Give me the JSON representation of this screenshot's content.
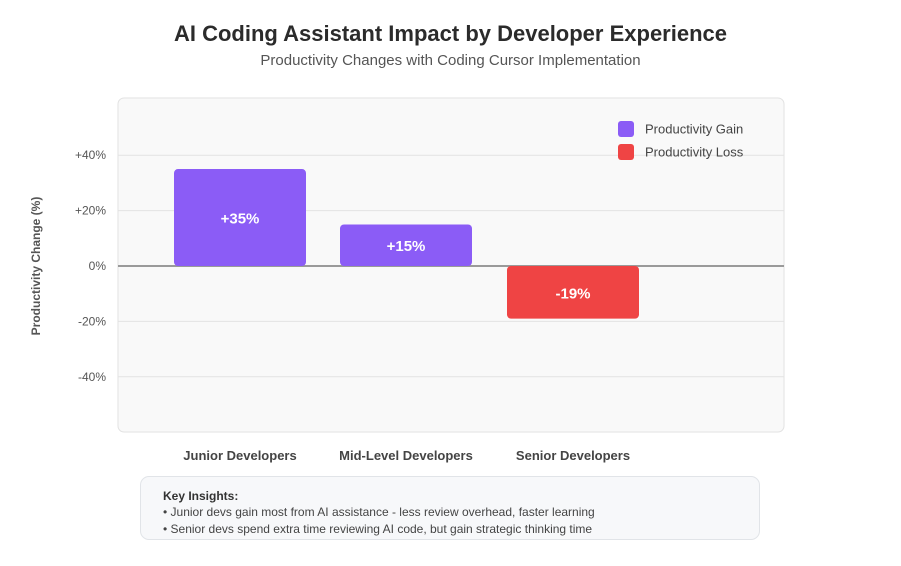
{
  "chart_data": {
    "type": "bar",
    "title": "AI Coding Assistant Impact by Developer Experience",
    "subtitle": "Productivity Changes with Coding Cursor Implementation",
    "ylabel": "Productivity Change (%)",
    "xlabel": "",
    "categories": [
      "Junior Developers",
      "Mid-Level Developers",
      "Senior Developers"
    ],
    "values": [
      35,
      15,
      -19
    ],
    "data_labels": [
      "+35%",
      "+15%",
      "-19%"
    ],
    "ylim": [
      -60,
      60
    ],
    "yticks": [
      40,
      20,
      0,
      -20,
      -40
    ],
    "ytick_labels": [
      "+40%",
      "+20%",
      "0%",
      "-20%",
      "-40%"
    ],
    "grid": true,
    "legend": {
      "placement": "top-right",
      "items": [
        {
          "label": "Productivity Gain",
          "color": "#8b5cf6"
        },
        {
          "label": "Productivity Loss",
          "color": "#ef4444"
        }
      ]
    },
    "colors": {
      "gain": "#8b5cf6",
      "loss": "#ef4444",
      "zero_line": "#9a9a9a",
      "grid": "#e3e3e3",
      "plot_bg": "#f9f9f9"
    }
  },
  "insights": {
    "title": "Key Insights:",
    "lines": [
      "• Junior devs gain most from AI assistance - less review overhead, faster learning",
      "• Senior devs spend extra time reviewing AI code, but gain strategic thinking time"
    ]
  }
}
